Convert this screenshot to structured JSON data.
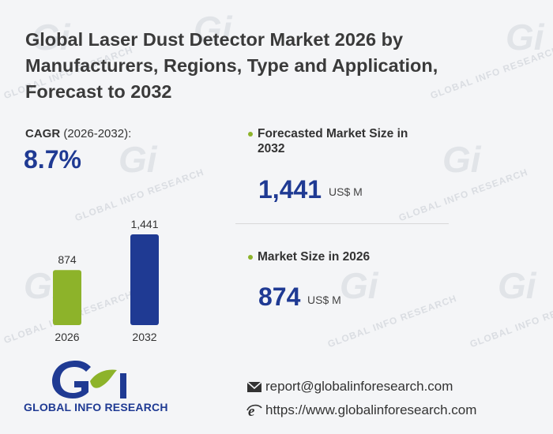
{
  "title": "Global Laser Dust Detector Market 2026 by Manufacturers, Regions, Type and Application, Forecast to 2032",
  "cagr": {
    "label": "CAGR",
    "period": "(2026-2032):",
    "value": "8.7%"
  },
  "forecast": {
    "label_line1": "Forecasted Market Size in",
    "label_line2": "2032",
    "value": "1,441",
    "unit": "US$ M"
  },
  "current": {
    "label": "Market Size in 2026",
    "value": "874",
    "unit": "US$ M"
  },
  "chart_data": {
    "type": "bar",
    "categories": [
      "2026",
      "2032"
    ],
    "values": [
      874,
      1441
    ],
    "value_labels": [
      "874",
      "1,441"
    ],
    "colors": [
      "#8db32a",
      "#1f3a93"
    ],
    "title": "",
    "xlabel": "",
    "ylabel": ""
  },
  "logo": {
    "name": "GLOBAL INFO RESEARCH"
  },
  "contact": {
    "email": "report@globalinforesearch.com",
    "website": "https://www.globalinforesearch.com"
  },
  "watermark": "GLOBAL INFO RESEARCH",
  "colors": {
    "accent": "#1f3a93",
    "green": "#8db32a"
  }
}
